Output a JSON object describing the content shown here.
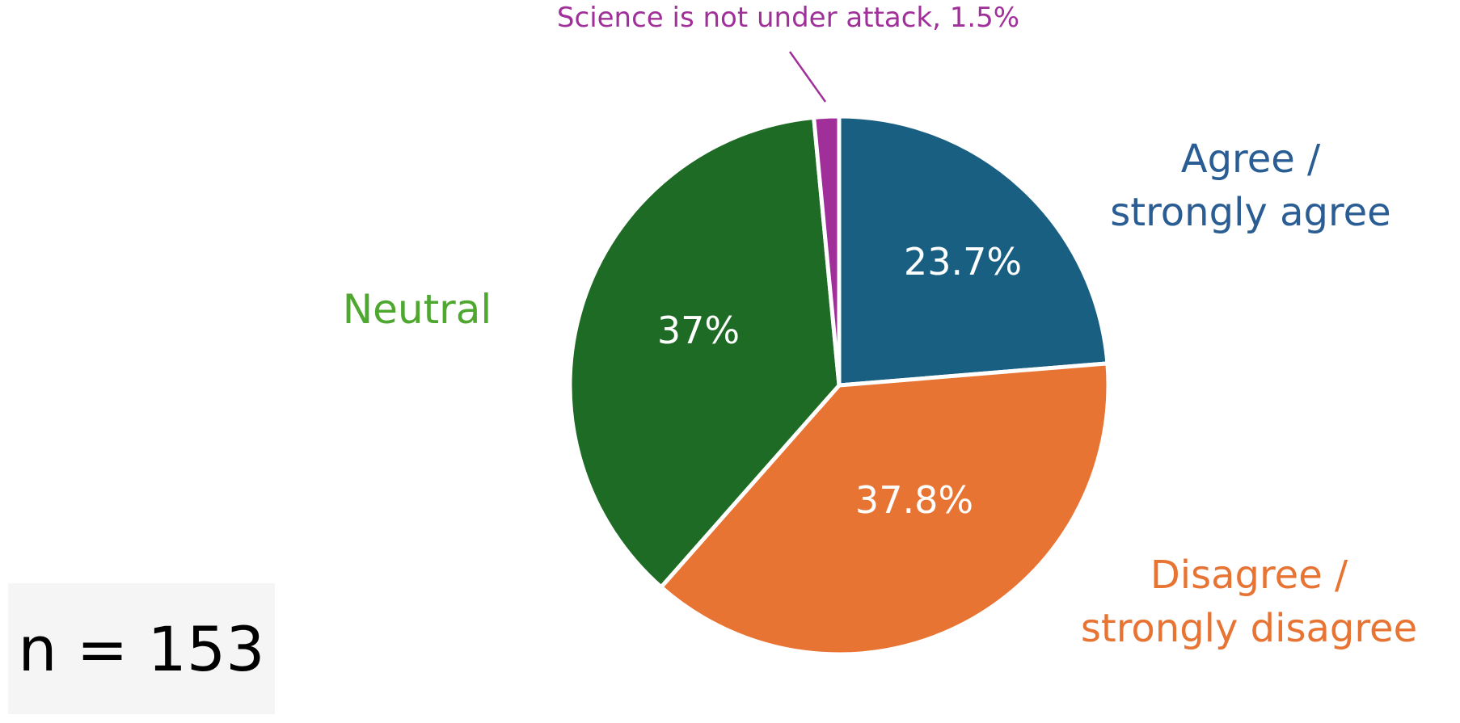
{
  "chart_data": {
    "type": "pie",
    "categories": [
      "Agree / strongly agree",
      "Disagree / strongly disagree",
      "Neutral",
      "Science is not under attack"
    ],
    "values": [
      23.7,
      37.8,
      37.0,
      1.5
    ],
    "value_labels": [
      "23.7%",
      "37.8%",
      "37%",
      "1.5%"
    ],
    "category_label_lines": [
      [
        "Agree /",
        "strongly agree"
      ],
      [
        "Disagree /",
        "strongly disagree"
      ],
      [
        "Neutral"
      ],
      [
        "Science is not under attack, 1.5%"
      ]
    ],
    "colors": [
      "#195f82",
      "#e87434",
      "#1d6b25",
      "#a02f9a"
    ],
    "label_colors": [
      "#2a5d93",
      "#e87434",
      "#4ea72e",
      "#a02f9a"
    ],
    "title": "",
    "legend": "none"
  },
  "annotation": {
    "n_label": "n = 153"
  }
}
